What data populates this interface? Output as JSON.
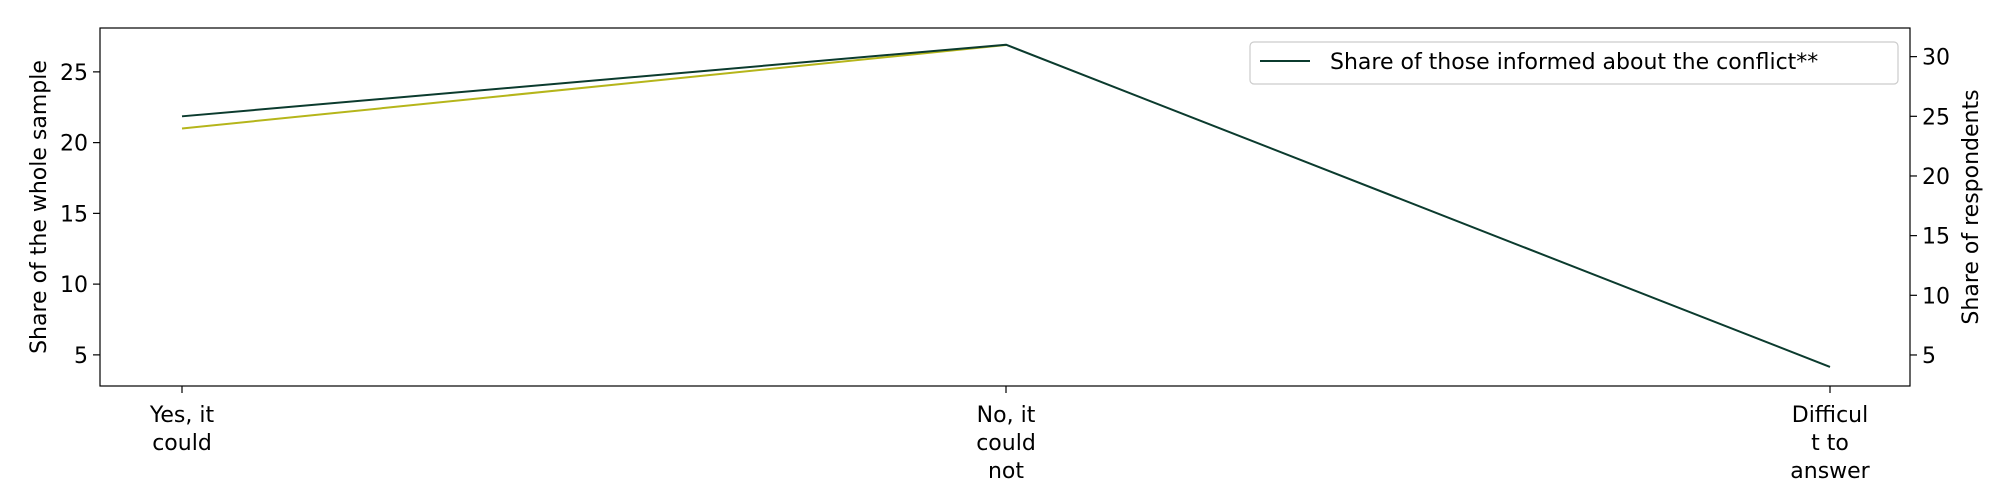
{
  "chart_data": {
    "type": "line",
    "categories": [
      [
        "Yes, it",
        "could"
      ],
      [
        "No, it",
        "could",
        "not"
      ],
      [
        "Difficul",
        "t to",
        "answer"
      ]
    ],
    "ylabel_left": "Share of the whole sample",
    "ylabel_right": "Share of respondents",
    "ylim_left": [
      2.8,
      28.1
    ],
    "ylim_right": [
      2.4,
      32.4
    ],
    "yticks_left": [
      5,
      10,
      15,
      20,
      25
    ],
    "yticks_right": [
      5,
      10,
      15,
      20,
      25,
      30
    ],
    "legend_position": "top-right",
    "grid": false,
    "series": [
      {
        "axis": "left",
        "color": "#b5b51a",
        "values": [
          21.0,
          26.9,
          null
        ]
      },
      {
        "name": "Share of those informed about the conflict**",
        "axis": "right",
        "color": "#0b3b2e",
        "values": [
          25.0,
          31.0,
          4.0
        ]
      }
    ]
  }
}
